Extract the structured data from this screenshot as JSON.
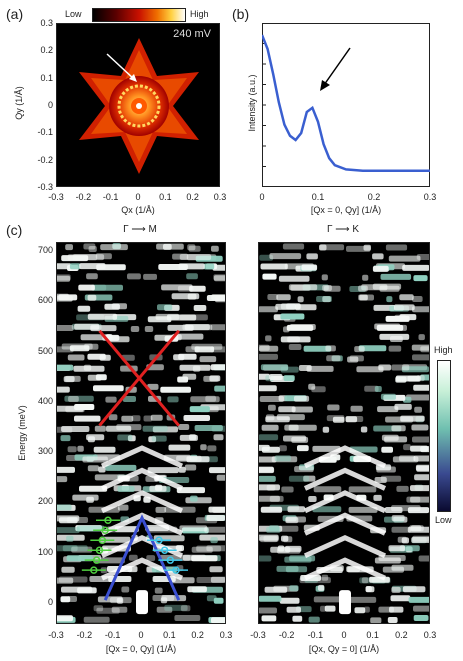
{
  "panel_a": {
    "label": "(a)",
    "colorbar_low": "Low",
    "colorbar_high": "High",
    "voltage": "240 mV",
    "ylabel": "Qy (1/Å)",
    "xlabel": "Qx (1/Å)",
    "ticks": [
      "-0.3",
      "-0.2",
      "-0.1",
      "0",
      "0.1",
      "0.2",
      "0.3"
    ],
    "yticks": [
      "0.3",
      "0.2",
      "0.1",
      "0",
      "-0.1",
      "-0.2",
      "-0.3"
    ]
  },
  "panel_b": {
    "label": "(b)",
    "ylabel": "Intensity (a.u.)",
    "xlabel": "[Qx = 0, Qy] (1/Å)",
    "xticks": [
      "0",
      "0.1",
      "0.2",
      "0.3"
    ]
  },
  "panel_c": {
    "label": "(c)",
    "left_header": "Γ ⟶ M",
    "right_header": "Γ ⟶ K",
    "ylabel": "Energy (meV)",
    "yticks": [
      "700",
      "600",
      "500",
      "400",
      "300",
      "200",
      "100",
      "0"
    ],
    "xticks": [
      "-0.3",
      "-0.2",
      "-0.1",
      "0",
      "0.1",
      "0.2",
      "0.3"
    ],
    "left_xlabel": "[Qx = 0, Qy] (1/Å)",
    "right_xlabel": "[Qx, Qy = 0] (1/Å)",
    "colorbar_high": "High",
    "colorbar_low": "Low"
  },
  "chart_data": [
    {
      "type": "line",
      "panel": "(b)",
      "xlabel": "[Qx = 0, Qy] (1/Å)",
      "ylabel": "Intensity (a.u.)",
      "xlim": [
        0,
        0.3
      ],
      "x": [
        0,
        0.01,
        0.02,
        0.03,
        0.04,
        0.05,
        0.06,
        0.07,
        0.08,
        0.09,
        0.1,
        0.11,
        0.12,
        0.13,
        0.15,
        0.18,
        0.21,
        0.25,
        0.3
      ],
      "y": [
        1.0,
        0.9,
        0.72,
        0.52,
        0.36,
        0.28,
        0.25,
        0.3,
        0.45,
        0.48,
        0.38,
        0.22,
        0.12,
        0.07,
        0.04,
        0.03,
        0.03,
        0.03,
        0.03
      ],
      "color": "#3a5fd0"
    },
    {
      "type": "heatmap",
      "panel": "(c) left",
      "xlabel": "[Qx = 0, Qy] (1/Å)",
      "ylabel": "Energy (meV)",
      "xlim": [
        -0.3,
        0.3
      ],
      "ylim": [
        -50,
        700
      ],
      "cross_lines": [
        [
          [
            -0.15,
            540
          ],
          [
            0.13,
            350
          ]
        ],
        [
          [
            -0.15,
            350
          ],
          [
            0.13,
            540
          ]
        ]
      ],
      "cross_color": "#e02020",
      "v_lines": [
        [
          [
            -0.13,
            0
          ],
          [
            0,
            165
          ],
          [
            0.13,
            0
          ]
        ]
      ],
      "v_color": "#3a4fd0",
      "green_points": [
        [
          -0.12,
          160
        ],
        [
          -0.13,
          140
        ],
        [
          -0.14,
          120
        ],
        [
          -0.15,
          100
        ],
        [
          -0.16,
          80
        ],
        [
          -0.17,
          60
        ]
      ],
      "cyan_points": [
        [
          0.06,
          120
        ],
        [
          0.08,
          100
        ],
        [
          0.1,
          80
        ],
        [
          0.12,
          60
        ]
      ]
    },
    {
      "type": "heatmap",
      "panel": "(c) right",
      "xlabel": "[Qx, Qy = 0] (1/Å)",
      "xlim": [
        -0.3,
        0.3
      ],
      "ylim": [
        -50,
        700
      ]
    }
  ]
}
